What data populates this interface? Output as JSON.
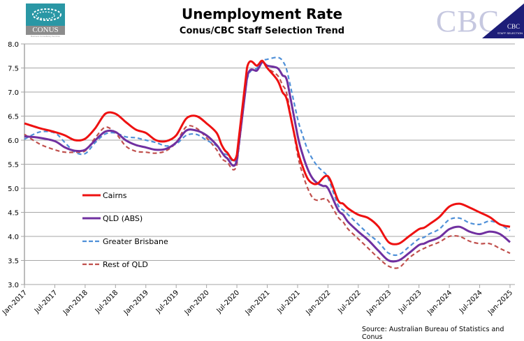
{
  "header": {
    "title": "Unemployment Rate",
    "subtitle": "Conus/CBC Staff Selection Trend"
  },
  "logos": {
    "left": {
      "name": "CONUS",
      "tagline": "Business Consultancy Services",
      "color": "#2a97a5"
    },
    "right": {
      "name": "CBC",
      "badge": "CBC",
      "badge_sub": "STAFF SELECTION",
      "color": "#1d1d78"
    }
  },
  "source": "Source:  Australian Bureau of Statistics and Conus",
  "chart_data": {
    "type": "line",
    "title": "Unemployment Rate",
    "subtitle": "Conus/CBC Staff Selection Trend",
    "xlabel": "",
    "ylabel": "",
    "ylim": [
      3.0,
      8.0
    ],
    "yticks": [
      "3.0",
      "3.5",
      "4.0",
      "4.5",
      "5.0",
      "5.5",
      "6.0",
      "6.5",
      "7.0",
      "7.5",
      "8.0"
    ],
    "xticks": [
      "Jan-2017",
      "Jul-2017",
      "Jan-2018",
      "Jul-2018",
      "Jan-2019",
      "Jul-2019",
      "Jan-2020",
      "Jul-2020",
      "Jan-2021",
      "Jul-2021",
      "Jan-2022",
      "Jul-2022",
      "Jan-2023",
      "Jul-2023",
      "Jan-2024",
      "Jul-2024",
      "Jan-2025"
    ],
    "x_unit": "months since Jan-2017",
    "grid": "horizontal",
    "legend_position": "center-left",
    "series": [
      {
        "name": "Cairns",
        "color": "#ee1111",
        "style": "solid",
        "x": [
          0,
          3,
          6,
          8,
          10,
          12,
          14,
          16,
          18,
          20,
          22,
          24,
          26,
          28,
          30,
          32,
          34,
          36,
          38,
          39,
          40,
          42,
          44,
          46,
          47,
          48,
          50,
          51,
          52,
          54,
          55,
          56,
          57,
          58,
          60,
          62,
          63,
          64,
          66,
          68,
          70,
          72,
          74,
          76,
          78,
          79,
          80,
          82,
          84,
          86,
          88,
          90,
          92,
          94,
          96
        ],
        "values": [
          6.35,
          6.25,
          6.17,
          6.1,
          6.0,
          6.03,
          6.25,
          6.55,
          6.55,
          6.38,
          6.22,
          6.15,
          6.0,
          5.98,
          6.1,
          6.45,
          6.5,
          6.35,
          6.15,
          5.9,
          5.75,
          5.7,
          7.5,
          7.55,
          7.65,
          7.5,
          7.25,
          7.0,
          6.8,
          5.8,
          5.45,
          5.2,
          5.1,
          5.1,
          5.25,
          4.75,
          4.68,
          4.58,
          4.45,
          4.38,
          4.2,
          3.88,
          3.85,
          4.0,
          4.15,
          4.18,
          4.25,
          4.4,
          4.62,
          4.68,
          4.6,
          4.5,
          4.4,
          4.25,
          4.2
        ]
      },
      {
        "name": "QLD (ABS)",
        "color": "#7030a0",
        "style": "solid",
        "x": [
          0,
          3,
          6,
          8,
          10,
          12,
          14,
          16,
          18,
          20,
          22,
          24,
          26,
          28,
          30,
          32,
          34,
          36,
          38,
          39,
          40,
          42,
          44,
          46,
          47,
          48,
          50,
          51,
          52,
          54,
          55,
          56,
          57,
          58,
          59,
          60,
          62,
          63,
          64,
          66,
          68,
          70,
          72,
          74,
          76,
          78,
          79,
          80,
          82,
          84,
          86,
          88,
          90,
          92,
          94,
          96
        ],
        "values": [
          6.08,
          6.05,
          5.98,
          5.85,
          5.78,
          5.8,
          6.0,
          6.18,
          6.17,
          6.0,
          5.9,
          5.85,
          5.8,
          5.82,
          5.95,
          6.2,
          6.2,
          6.1,
          5.9,
          5.75,
          5.63,
          5.58,
          7.3,
          7.45,
          7.62,
          7.55,
          7.5,
          7.35,
          7.2,
          6.1,
          5.7,
          5.4,
          5.2,
          5.1,
          5.05,
          5.0,
          4.55,
          4.45,
          4.3,
          4.1,
          3.92,
          3.7,
          3.5,
          3.5,
          3.65,
          3.82,
          3.85,
          3.9,
          3.98,
          4.15,
          4.2,
          4.1,
          4.05,
          4.1,
          4.05,
          3.88
        ]
      },
      {
        "name": "Greater Brisbane",
        "color": "#4f90d8",
        "style": "dashed",
        "x": [
          0,
          3,
          6,
          8,
          10,
          12,
          14,
          16,
          18,
          20,
          22,
          24,
          26,
          28,
          30,
          32,
          34,
          36,
          38,
          39,
          40,
          42,
          44,
          46,
          47,
          48,
          50,
          51,
          52,
          54,
          55,
          56,
          57,
          58,
          59,
          60,
          62,
          63,
          64,
          66,
          68,
          70,
          72,
          74,
          76,
          78,
          79,
          80,
          82,
          84,
          86,
          88,
          90,
          92,
          94,
          96
        ],
        "values": [
          6.02,
          6.17,
          6.15,
          5.95,
          5.75,
          5.72,
          5.95,
          6.13,
          6.15,
          6.07,
          6.05,
          6.0,
          5.95,
          5.88,
          5.92,
          6.1,
          6.12,
          6.0,
          5.88,
          5.75,
          5.7,
          5.65,
          7.25,
          7.5,
          7.65,
          7.68,
          7.72,
          7.65,
          7.4,
          6.45,
          6.1,
          5.8,
          5.6,
          5.45,
          5.35,
          5.22,
          4.65,
          4.55,
          4.45,
          4.25,
          4.05,
          3.88,
          3.65,
          3.62,
          3.78,
          3.95,
          3.98,
          4.05,
          4.15,
          4.35,
          4.38,
          4.28,
          4.25,
          4.32,
          4.25,
          4.12
        ]
      },
      {
        "name": "Rest of QLD",
        "color": "#c0504d",
        "style": "dashed",
        "x": [
          0,
          3,
          6,
          8,
          10,
          12,
          14,
          16,
          18,
          20,
          22,
          24,
          26,
          28,
          30,
          32,
          34,
          36,
          38,
          39,
          40,
          42,
          44,
          46,
          47,
          48,
          50,
          51,
          52,
          54,
          55,
          56,
          57,
          58,
          59,
          60,
          62,
          63,
          64,
          66,
          68,
          70,
          72,
          74,
          76,
          78,
          79,
          80,
          82,
          84,
          86,
          88,
          90,
          92,
          94,
          96
        ],
        "values": [
          6.12,
          5.92,
          5.8,
          5.75,
          5.75,
          5.78,
          6.05,
          6.27,
          6.15,
          5.88,
          5.77,
          5.75,
          5.73,
          5.78,
          5.95,
          6.28,
          6.25,
          6.05,
          5.8,
          5.62,
          5.55,
          5.5,
          7.3,
          7.45,
          7.62,
          7.5,
          7.35,
          7.15,
          6.9,
          5.7,
          5.3,
          5.0,
          4.8,
          4.75,
          4.78,
          4.75,
          4.4,
          4.3,
          4.15,
          3.95,
          3.75,
          3.55,
          3.38,
          3.35,
          3.55,
          3.7,
          3.75,
          3.8,
          3.88,
          4.0,
          4.0,
          3.9,
          3.85,
          3.85,
          3.75,
          3.65
        ]
      }
    ]
  }
}
